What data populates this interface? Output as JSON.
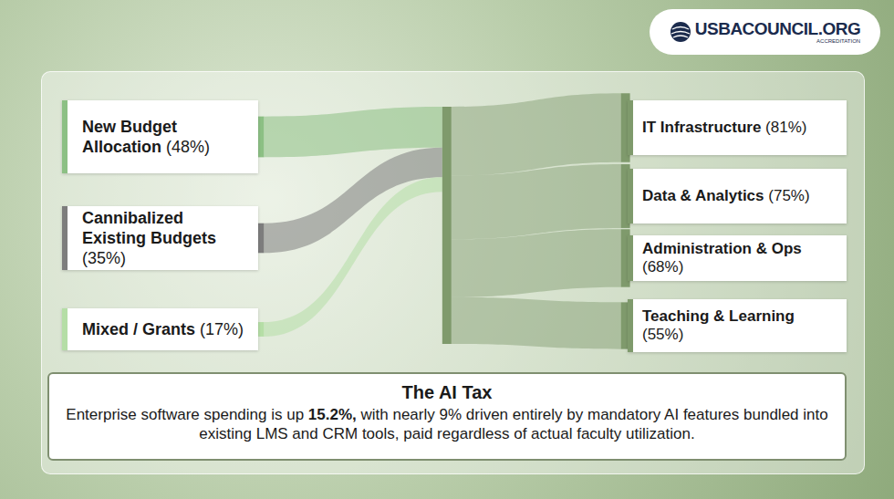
{
  "chart_data": {
    "type": "sankey",
    "sources": {
      "names": [
        "New Budget Allocation",
        "Cannibalized Existing Budgets",
        "Mixed / Grants"
      ],
      "values": [
        48,
        35,
        17
      ],
      "value_labels": [
        "(48%)",
        "(35%)",
        "(17%)"
      ],
      "colors": [
        "#8cc084",
        "#7d7d7d",
        "#b5dea6"
      ]
    },
    "targets": {
      "names": [
        "IT Infrastructure",
        "Data & Analytics",
        "Administration & Ops",
        "Teaching & Learning"
      ],
      "values": [
        81,
        75,
        68,
        55
      ],
      "value_labels": [
        "(81%)",
        "(75%)",
        "(68%)",
        "(55%)"
      ],
      "color": "#7f9a6c"
    },
    "data_labels": true
  },
  "header": {
    "logo": "USBACOUNCIL.ORG",
    "logo_subtitle": "ACCREDITATION"
  },
  "callout": {
    "title": "The AI Tax",
    "text": [
      {
        "text": "Enterprise software spending is up "
      },
      {
        "text": "15.2%,",
        "bold": true
      },
      {
        "text": " with nearly 9% driven entirely by mandatory AI features bundled into existing LMS and CRM tools, paid regardless of actual faculty utilization."
      }
    ]
  }
}
